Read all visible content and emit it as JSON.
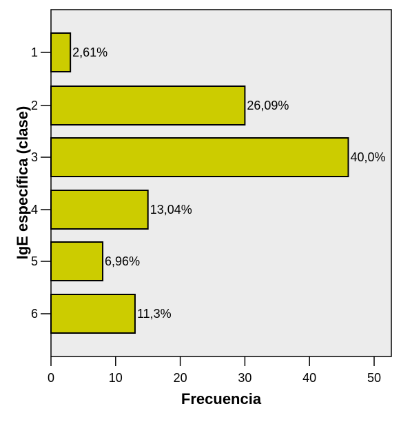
{
  "chart_data": {
    "type": "bar",
    "orientation": "horizontal",
    "categories": [
      "1",
      "2",
      "3",
      "4",
      "5",
      "6"
    ],
    "values": [
      3,
      30,
      46,
      15,
      8,
      13
    ],
    "data_labels": [
      "2,61%",
      "26,09%",
      "40,0%",
      "13,04%",
      "6,96%",
      "11,3%"
    ],
    "x_ticks": [
      "0",
      "10",
      "20",
      "30",
      "40",
      "50"
    ],
    "xlim": [
      0,
      53
    ],
    "xlabel": "Frecuencia",
    "ylabel": "IgE específica (clase)",
    "grid": false,
    "colors": {
      "plot_background": "#ececec",
      "bar_fill": "#cccc00",
      "bar_stroke": "#000000"
    }
  }
}
